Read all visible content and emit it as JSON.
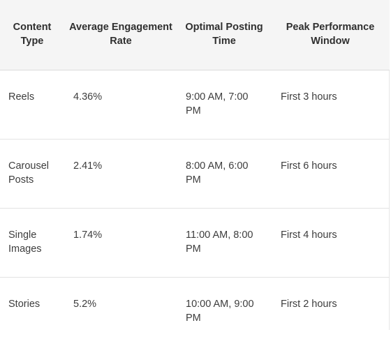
{
  "table": {
    "headers": [
      "Content Type",
      "Average Engagement Rate",
      "Optimal Posting Time",
      "Peak Performance Window"
    ],
    "rows": [
      {
        "type": "Reels",
        "rate": "4.36%",
        "time": "9:00 AM, 7:00 PM",
        "window": "First 3 hours"
      },
      {
        "type": "Carousel Posts",
        "rate": "2.41%",
        "time": "8:00 AM, 6:00 PM",
        "window": "First 6 hours"
      },
      {
        "type": "Single Images",
        "rate": "1.74%",
        "time": "11:00 AM, 8:00 PM",
        "window": "First 4 hours"
      },
      {
        "type": "Stories",
        "rate": "5.2%",
        "time": "10:00 AM, 9:00 PM",
        "window": "First 2 hours"
      }
    ]
  }
}
